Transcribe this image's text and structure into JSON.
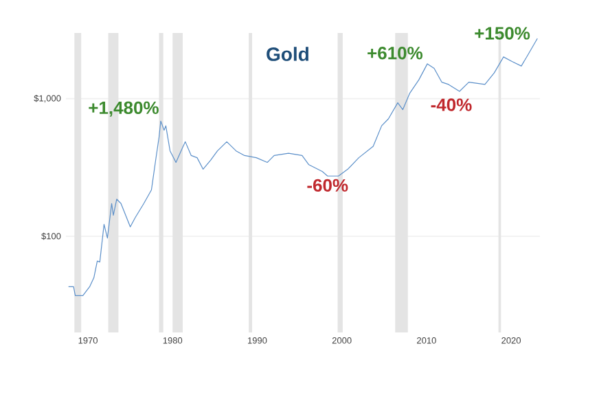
{
  "chart_data": {
    "type": "line",
    "title": "Gold",
    "x": [
      1967.7,
      1968.3,
      1968.5,
      1969.4,
      1970.2,
      1970.7,
      1971.1,
      1971.4,
      1971.9,
      1972.3,
      1972.8,
      1973.0,
      1973.4,
      1973.9,
      1975.0,
      1975.6,
      1976.6,
      1977.5,
      1978.0,
      1978.4,
      1978.6,
      1979.0,
      1979.2,
      1979.7,
      1980.4,
      1981.0,
      1981.5,
      1982.2,
      1982.9,
      1983.6,
      1984.5,
      1985.3,
      1986.4,
      1987.5,
      1988.5,
      1989.9,
      1991.2,
      1992.0,
      1993.7,
      1995.3,
      1996.1,
      1997.7,
      1998.3,
      1999.6,
      2000.7,
      2002.0,
      2003.7,
      2004.7,
      2005.5,
      2006.6,
      2007.2,
      2008.0,
      2009.1,
      2010.1,
      2010.9,
      2011.8,
      2012.6,
      2013.9,
      2015.0,
      2016.9,
      2018.0,
      2019.1,
      2020.1,
      2021.2,
      2022.0,
      2023.1
    ],
    "series": [
      {
        "color": "#5b8fc9",
        "values": [
          43,
          43,
          37,
          37,
          43,
          50,
          66,
          65,
          122,
          97,
          173,
          142,
          186,
          173,
          117,
          137,
          173,
          217,
          357,
          525,
          687,
          589,
          635,
          417,
          344,
          417,
          486,
          386,
          372,
          307,
          357,
          417,
          486,
          417,
          386,
          372,
          344,
          386,
          401,
          386,
          331,
          295,
          274,
          274,
          307,
          372,
          450,
          635,
          713,
          933,
          832,
          1089,
          1371,
          1791,
          1660,
          1318,
          1268,
          1130,
          1318,
          1268,
          1538,
          2009,
          1862,
          1726,
          2089,
          2735
        ]
      }
    ],
    "xlim": [
      1967.4,
      2023.4
    ],
    "ylim": [
      20,
      3000
    ],
    "log": "y",
    "xticks": [
      1970,
      1980,
      1990,
      2000,
      2010,
      2020
    ],
    "yticks": [
      {
        "value": 100,
        "label": "$100"
      },
      {
        "value": 1000,
        "label": "$1,000"
      }
    ],
    "grid": "y",
    "marker": "none",
    "line_style": "solid",
    "bands": [
      {
        "axis": "x",
        "from": 1968.4,
        "to": 1969.2,
        "color": "#e4e4e4"
      },
      {
        "axis": "x",
        "from": 1972.4,
        "to": 1973.6,
        "color": "#e4e4e4"
      },
      {
        "axis": "x",
        "from": 1978.4,
        "to": 1978.9,
        "color": "#e4e4e4"
      },
      {
        "axis": "x",
        "from": 1980.0,
        "to": 1981.2,
        "color": "#e4e4e4"
      },
      {
        "axis": "x",
        "from": 1989.0,
        "to": 1989.4,
        "color": "#e4e4e4"
      },
      {
        "axis": "x",
        "from": 1999.5,
        "to": 2000.1,
        "color": "#e4e4e4"
      },
      {
        "axis": "x",
        "from": 2006.3,
        "to": 2007.8,
        "color": "#e4e4e4"
      },
      {
        "axis": "x",
        "from": 2018.5,
        "to": 2018.8,
        "color": "#e4e4e4"
      }
    ],
    "annotations": [
      {
        "text": "+1,480%",
        "x": 1978.6,
        "y": 687
      },
      {
        "text": "-60%",
        "x": 1998.3,
        "y": 274
      },
      {
        "text": "+610%",
        "x": 2010.1,
        "y": 1791
      },
      {
        "text": "-40%",
        "x": 2013.9,
        "y": 1130
      },
      {
        "text": "+150%",
        "x": 2023.1,
        "y": 2735
      }
    ]
  }
}
